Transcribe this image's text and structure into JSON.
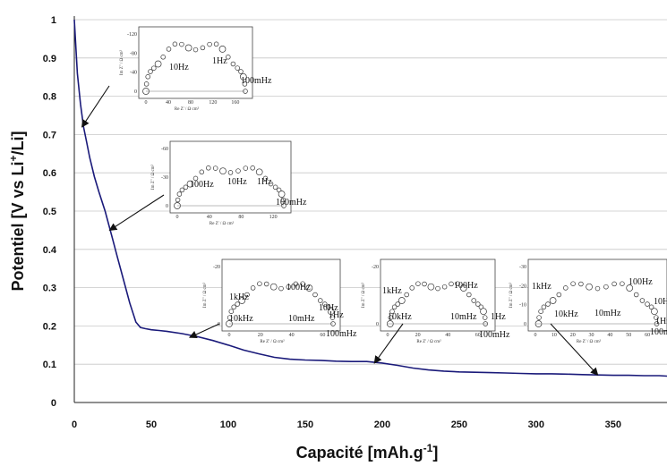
{
  "chart_data": {
    "type": "line",
    "title": "",
    "xlabel": "Capacité [mAh.g",
    "xlabel_sup": "-1",
    "xlabel_end": "]",
    "ylabel": "Potentiel [V vs Li",
    "ylabel_sup": "+",
    "ylabel_end": "/Li]",
    "xlim": [
      0,
      385
    ],
    "ylim": [
      0,
      1
    ],
    "xticks": [
      "0",
      "50",
      "100",
      "150",
      "200",
      "250",
      "300",
      "350"
    ],
    "yticks": [
      "0",
      "0.1",
      "0.2",
      "0.3",
      "0.4",
      "0.5",
      "0.6",
      "0.7",
      "0.8",
      "0.9",
      "1"
    ],
    "grid": true,
    "line_color": "#1a1a7a",
    "series": [
      {
        "x": [
          0,
          2,
          4,
          6,
          8,
          10,
          13,
          16,
          20,
          24,
          28,
          32,
          36,
          40,
          43,
          46,
          50,
          55,
          60,
          70,
          80,
          90,
          100,
          110,
          120,
          130,
          140,
          150,
          160,
          170,
          180,
          190,
          200,
          210,
          220,
          230,
          240,
          250,
          260,
          270,
          280,
          290,
          300,
          310,
          320,
          330,
          340,
          350,
          360,
          370,
          380,
          385
        ],
        "y": [
          1.0,
          0.86,
          0.78,
          0.72,
          0.68,
          0.64,
          0.59,
          0.55,
          0.5,
          0.44,
          0.38,
          0.32,
          0.26,
          0.21,
          0.196,
          0.193,
          0.19,
          0.188,
          0.186,
          0.18,
          0.172,
          0.162,
          0.15,
          0.137,
          0.127,
          0.118,
          0.113,
          0.111,
          0.11,
          0.108,
          0.107,
          0.107,
          0.103,
          0.097,
          0.09,
          0.085,
          0.082,
          0.08,
          0.079,
          0.078,
          0.077,
          0.076,
          0.075,
          0.075,
          0.074,
          0.073,
          0.072,
          0.071,
          0.071,
          0.07,
          0.07,
          0.069
        ]
      }
    ],
    "insets": [
      {
        "labels": [
          "10Hz",
          "1Hz",
          "100mHz"
        ],
        "xticks": [
          "0",
          "40",
          "80",
          "120",
          "160"
        ],
        "yticks": [
          "-120",
          "-80",
          "-40",
          "0"
        ],
        "ylabel": "Im Z'' / Ω cm²",
        "xlabel": "Re Z' / Ω cm²",
        "arrow_target": [
          5,
          0.72
        ]
      },
      {
        "labels": [
          "100Hz",
          "10Hz",
          "1Hz",
          "100mHz"
        ],
        "xticks": [
          "0",
          "40",
          "80",
          "120"
        ],
        "yticks": [
          "-60",
          "-30",
          "0"
        ],
        "ylabel": "Im Z'' / Ω cm²",
        "xlabel": "Re Z' / Ω cm²",
        "arrow_target": [
          23,
          0.45
        ]
      },
      {
        "labels": [
          "1kHz",
          "100Hz",
          "10Hz",
          "10kHz",
          "10mHz",
          "1Hz",
          "100mHz"
        ],
        "xticks": [
          "0",
          "20",
          "40",
          "60"
        ],
        "yticks": [
          "-20",
          "0"
        ],
        "ylabel": "Im Z'' / Ω cm²",
        "xlabel": "Re Z' / Ω cm²",
        "arrow_target": [
          75,
          0.17
        ]
      },
      {
        "labels": [
          "1kHz",
          "100Hz",
          "10kHz",
          "10mHz",
          "1Hz",
          "100mHz"
        ],
        "xticks": [
          "0",
          "20",
          "40",
          "60"
        ],
        "yticks": [
          "-20",
          "0"
        ],
        "ylabel": "Im Z'' / Ω cm²",
        "xlabel": "Re Z' / Ω cm²",
        "arrow_target": [
          195,
          0.103
        ]
      },
      {
        "labels": [
          "1kHz",
          "100Hz",
          "10kHz",
          "10mHz",
          "10Hz",
          "1Hz",
          "100mHz"
        ],
        "xticks": [
          "0",
          "10",
          "20",
          "30",
          "40",
          "50",
          "60"
        ],
        "yticks": [
          "-30",
          "-20",
          "-10",
          "0"
        ],
        "ylabel": "Im Z'' / Ω cm²",
        "xlabel": "Re Z' / Ω cm²",
        "arrow_target": [
          340,
          0.072
        ]
      }
    ]
  }
}
